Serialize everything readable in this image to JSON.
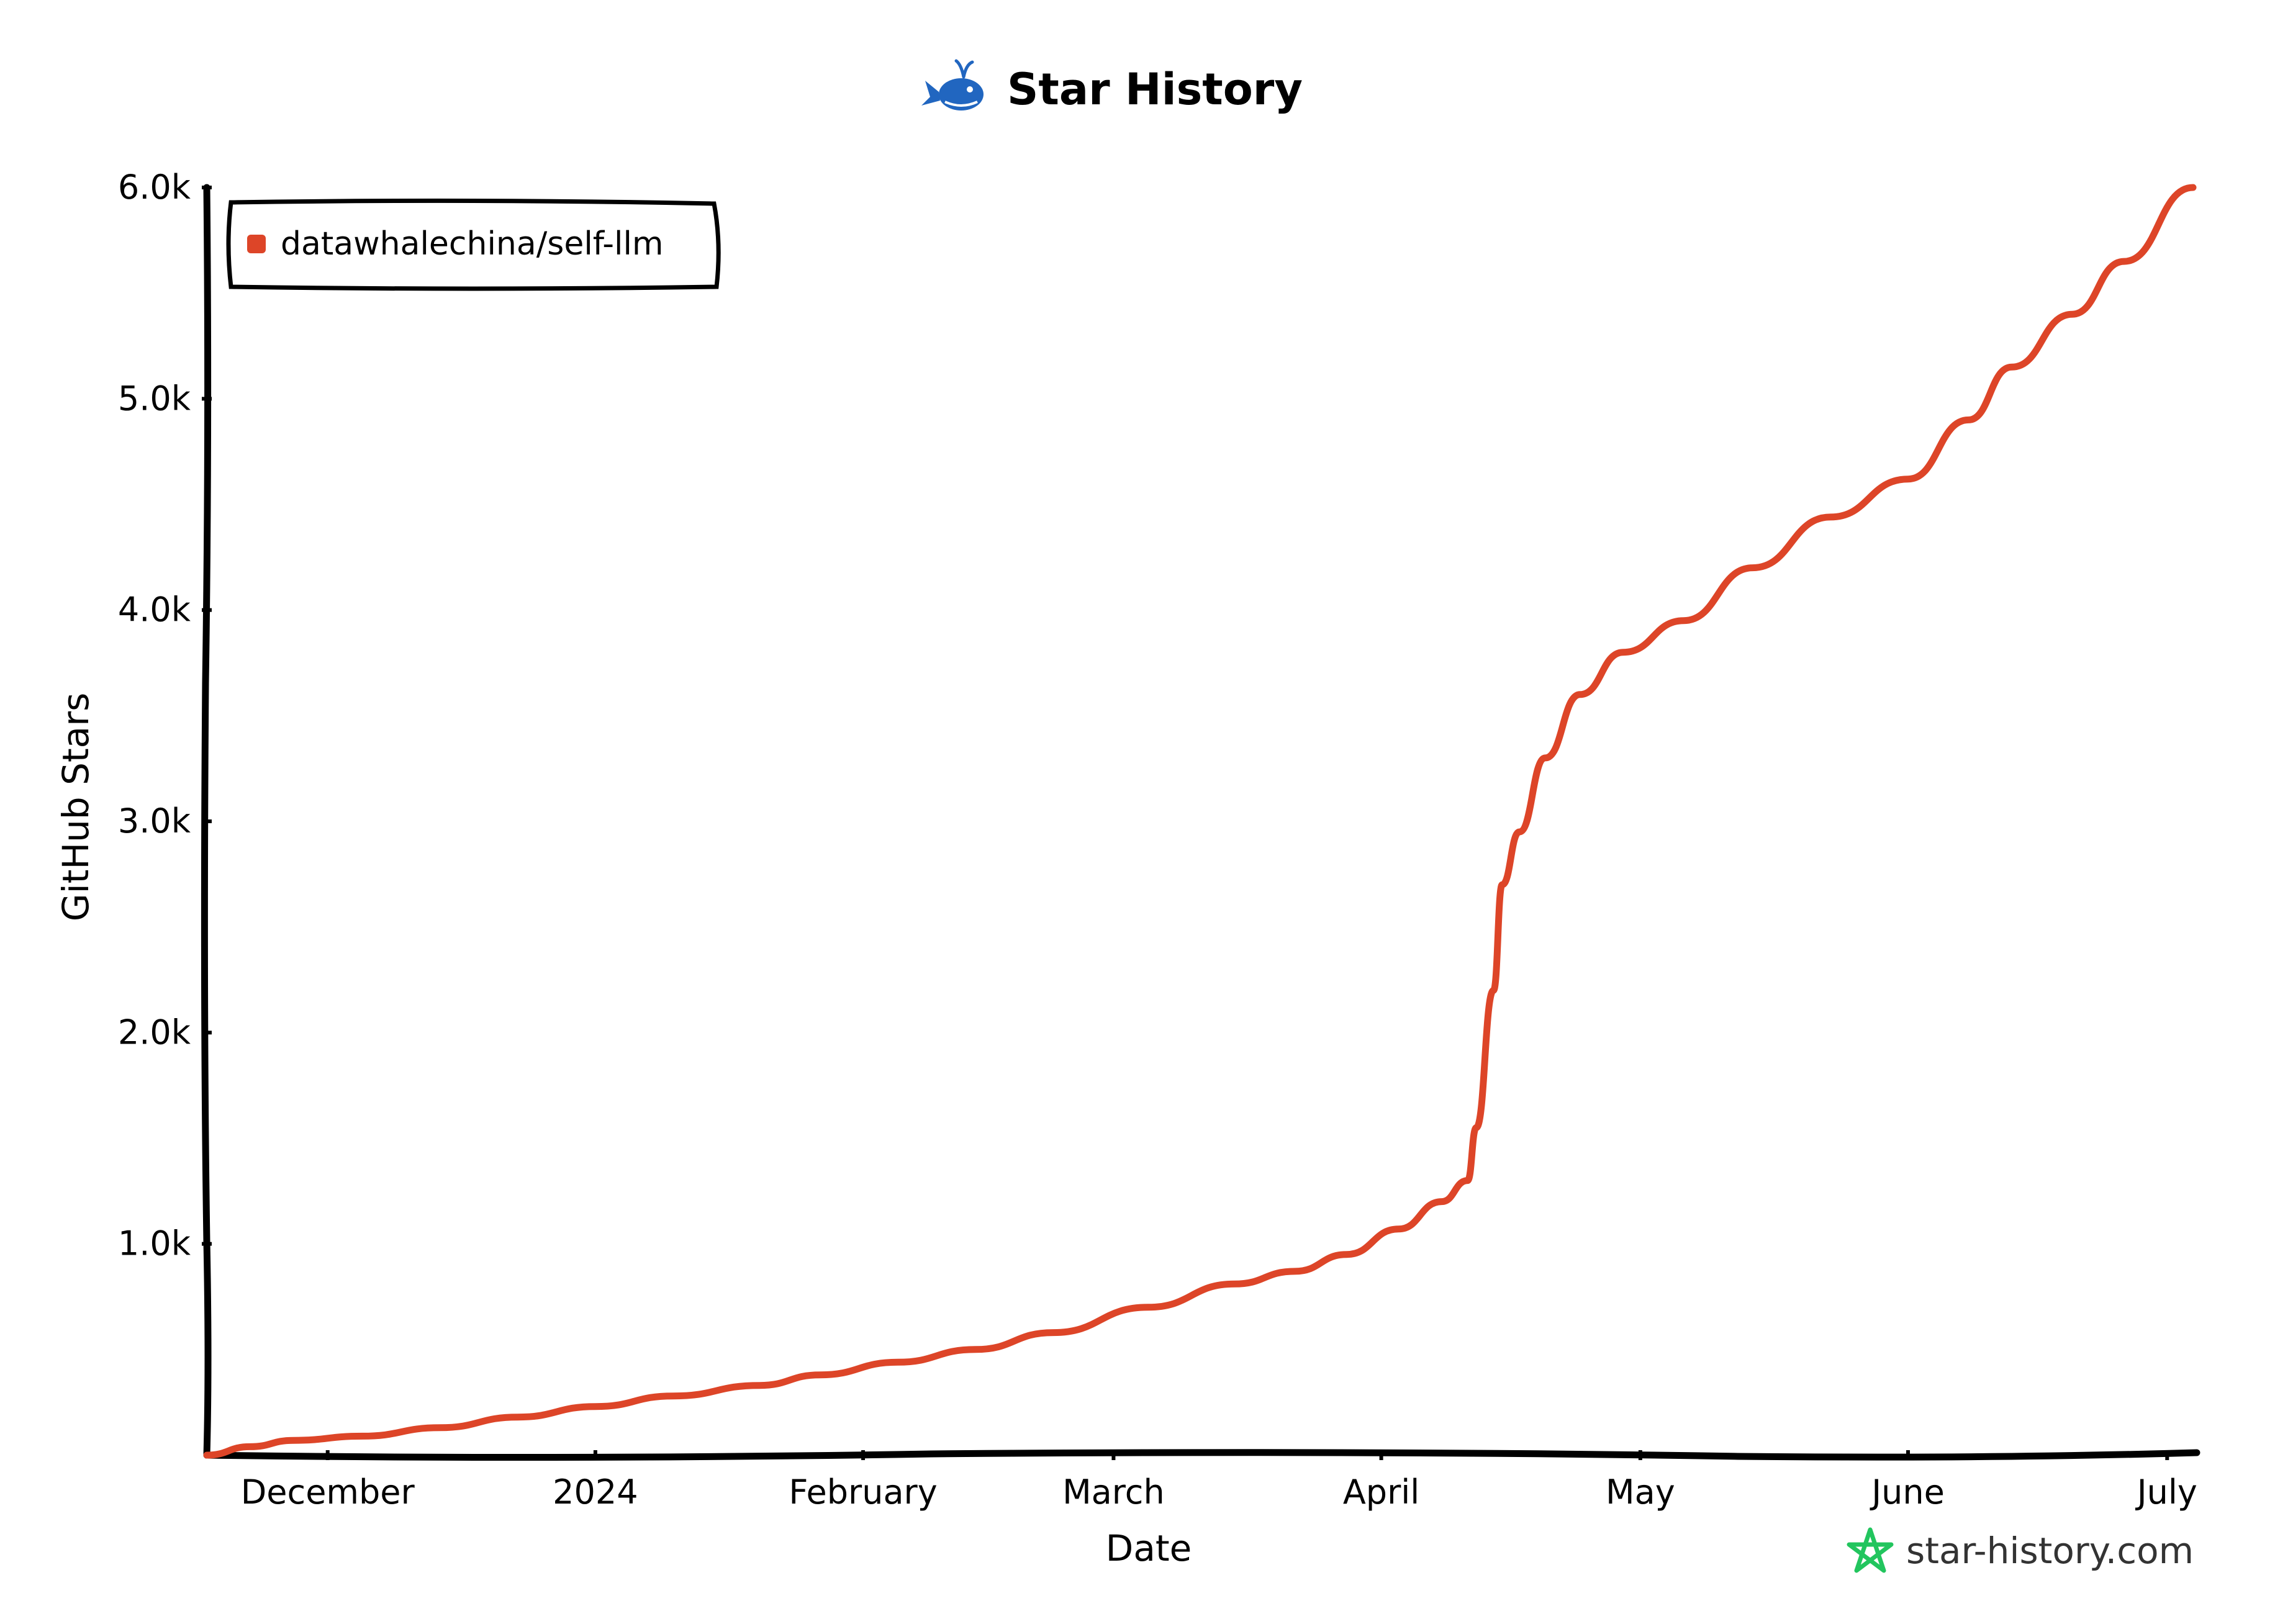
{
  "chart_data": {
    "type": "line",
    "title": "Star History",
    "xlabel": "Date",
    "ylabel": "GitHub Stars",
    "x_tick_labels": [
      "December",
      "2024",
      "February",
      "March",
      "April",
      "May",
      "June",
      "July"
    ],
    "y_tick_labels": [
      "1.0k",
      "2.0k",
      "3.0k",
      "4.0k",
      "5.0k",
      "6.0k"
    ],
    "y_ticks": [
      1000,
      2000,
      3000,
      4000,
      5000,
      6000
    ],
    "ylim": [
      0,
      6000
    ],
    "xlim": [
      "2023-11-17",
      "2024-07-04"
    ],
    "x_ticks": [
      "2023-12-01",
      "2024-01-01",
      "2024-02-01",
      "2024-03-01",
      "2024-04-01",
      "2024-05-01",
      "2024-06-01",
      "2024-07-01"
    ],
    "grid": false,
    "legend_position": "top-left",
    "series": [
      {
        "name": "datawhalechina/self-llm",
        "color": "#dd4528",
        "x": [
          "2023-11-17",
          "2023-11-22",
          "2023-11-27",
          "2023-12-05",
          "2023-12-14",
          "2023-12-23",
          "2024-01-01",
          "2024-01-10",
          "2024-01-20",
          "2024-01-27",
          "2024-02-05",
          "2024-02-14",
          "2024-02-23",
          "2024-03-05",
          "2024-03-15",
          "2024-03-22",
          "2024-03-28",
          "2024-04-03",
          "2024-04-08",
          "2024-04-11",
          "2024-04-12",
          "2024-04-14",
          "2024-04-15",
          "2024-04-17",
          "2024-04-20",
          "2024-04-24",
          "2024-04-29",
          "2024-05-06",
          "2024-05-14",
          "2024-05-23",
          "2024-06-01",
          "2024-06-08",
          "2024-06-13",
          "2024-06-20",
          "2024-06-26",
          "2024-07-04"
        ],
        "values": [
          0,
          40,
          70,
          90,
          130,
          180,
          230,
          280,
          330,
          380,
          440,
          500,
          580,
          700,
          810,
          870,
          950,
          1070,
          1200,
          1300,
          1550,
          2200,
          2700,
          2950,
          3300,
          3600,
          3800,
          3950,
          4200,
          4440,
          4620,
          4900,
          5150,
          5400,
          5650,
          6000
        ]
      }
    ]
  },
  "brand": {
    "label": "star-history.com",
    "icon": "star-icon",
    "icon_color": "#22c55e"
  },
  "title_icon": {
    "icon": "whale-icon",
    "color": "#2166c0"
  }
}
